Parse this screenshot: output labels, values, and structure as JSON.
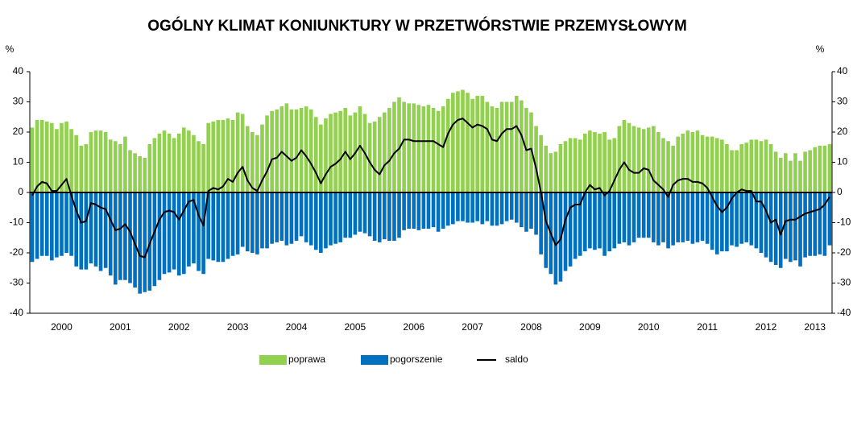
{
  "chart_data": {
    "type": "bar",
    "title": "OGÓLNY KLIMAT KONIUNKTURY W PRZETWÓRSTWIE PRZEMYSŁOWYM",
    "y_label": "%",
    "y2_label": "%",
    "categories": [
      null,
      null,
      null,
      null,
      null,
      null,
      "2000",
      null,
      null,
      null,
      null,
      null,
      null,
      null,
      null,
      null,
      null,
      null,
      "2001",
      null,
      null,
      null,
      null,
      null,
      null,
      null,
      null,
      null,
      null,
      null,
      "2002",
      null,
      null,
      null,
      null,
      null,
      null,
      null,
      null,
      null,
      null,
      null,
      "2003",
      null,
      null,
      null,
      null,
      null,
      null,
      null,
      null,
      null,
      null,
      null,
      "2004",
      null,
      null,
      null,
      null,
      null,
      null,
      null,
      null,
      null,
      null,
      null,
      "2005",
      null,
      null,
      null,
      null,
      null,
      null,
      null,
      null,
      null,
      null,
      null,
      "2006",
      null,
      null,
      null,
      null,
      null,
      null,
      null,
      null,
      null,
      null,
      null,
      "2007",
      null,
      null,
      null,
      null,
      null,
      null,
      null,
      null,
      null,
      null,
      null,
      "2008",
      null,
      null,
      null,
      null,
      null,
      null,
      null,
      null,
      null,
      null,
      null,
      "2009",
      null,
      null,
      null,
      null,
      null,
      null,
      null,
      null,
      null,
      null,
      null,
      "2010",
      null,
      null,
      null,
      null,
      null,
      null,
      null,
      null,
      null,
      null,
      null,
      "2011",
      null,
      null,
      null,
      null,
      null,
      null,
      null,
      null,
      null,
      null,
      null,
      "2012",
      null,
      null,
      null,
      null,
      null,
      null,
      null,
      null,
      null,
      "2013",
      null,
      null,
      null
    ],
    "series": [
      {
        "name": "poprawa",
        "type": "bar",
        "color": "#92d050",
        "values": [
          21.5,
          24,
          24,
          23.5,
          23,
          21,
          23,
          23.5,
          21,
          19,
          15.5,
          16,
          20,
          20.5,
          20.5,
          20,
          17.5,
          17,
          16,
          18.5,
          14,
          13,
          12,
          11.5,
          16,
          18,
          19.5,
          20.5,
          19.5,
          18,
          19.5,
          21.5,
          20.5,
          19,
          17,
          16,
          23,
          23.5,
          24,
          24,
          24.5,
          24,
          26.5,
          26,
          22,
          20,
          19,
          22.5,
          25.5,
          27,
          27.5,
          28.5,
          29.5,
          27.5,
          27.5,
          28,
          28.5,
          27.5,
          25,
          22.5,
          24.5,
          26,
          26.5,
          27,
          28,
          25.5,
          26.5,
          28.5,
          26,
          23,
          23.5,
          25,
          26.5,
          28,
          30,
          31.5,
          30,
          29.5,
          29.5,
          29,
          28.5,
          29,
          28,
          27,
          28.5,
          31,
          33,
          33.5,
          34,
          33,
          31,
          32,
          32,
          30,
          28.5,
          28,
          30,
          30,
          30,
          32,
          30.5,
          28,
          26.5,
          22,
          19,
          15.5,
          13,
          13.5,
          16,
          17,
          18,
          18,
          17.5,
          19.5,
          20.5,
          20,
          19.5,
          20,
          17.5,
          18,
          22,
          24,
          23,
          22,
          21.5,
          21,
          21.5,
          22,
          20,
          18,
          17,
          15.5,
          18.5,
          19.5,
          20.5,
          20,
          20.5,
          19,
          18.5,
          18.5,
          18,
          17.5,
          16,
          14,
          14,
          16,
          16.5,
          17.5,
          17.5,
          17,
          17.5,
          16,
          13.5,
          11.5,
          13,
          10.5,
          13,
          10.5,
          13.5,
          14,
          15,
          15.5,
          15.5,
          16
        ]
      },
      {
        "name": "pogorszenie",
        "type": "bar",
        "color": "#0070c0",
        "values": [
          -23,
          -22,
          -21,
          -21,
          -22.5,
          -21.5,
          -21,
          -20,
          -21,
          -24.5,
          -25.5,
          -25.5,
          -23.5,
          -24.5,
          -26,
          -25,
          -27.5,
          -30.5,
          -29,
          -29,
          -30,
          -31.5,
          -33.5,
          -33,
          -32.5,
          -31,
          -29,
          -27,
          -26.5,
          -25.5,
          -27.5,
          -27,
          -24.5,
          -23.5,
          -26,
          -27,
          -22,
          -22.5,
          -23,
          -23,
          -22,
          -21,
          -20.5,
          -18,
          -19.5,
          -20,
          -20.5,
          -18.5,
          -18.5,
          -17,
          -16.5,
          -16,
          -17.5,
          -17,
          -16,
          -14.5,
          -16.5,
          -17.5,
          -19,
          -20,
          -18.5,
          -17.5,
          -17,
          -16.5,
          -15,
          -15,
          -14,
          -13,
          -13.5,
          -14.5,
          -16,
          -16.5,
          -15.5,
          -16,
          -16,
          -15,
          -12.5,
          -12,
          -12,
          -12.5,
          -12,
          -12,
          -11.5,
          -13,
          -12,
          -11,
          -10.5,
          -9.5,
          -9.5,
          -10,
          -10,
          -9.5,
          -10.5,
          -9.5,
          -11,
          -11,
          -10.5,
          -9.5,
          -9,
          -10,
          -11.5,
          -13,
          -12,
          -14,
          -20.5,
          -25,
          -27,
          -30.5,
          -29.5,
          -26,
          -24.5,
          -22,
          -21,
          -19.5,
          -18.5,
          -19,
          -18.5,
          -21,
          -19.5,
          -18.5,
          -17,
          -16.5,
          -17.5,
          -16.5,
          -15,
          -15,
          -15,
          -16.5,
          -17.5,
          -16.5,
          -18.5,
          -17.5,
          -16.5,
          -16.5,
          -16,
          -17,
          -16.5,
          -16,
          -17,
          -19,
          -20.5,
          -19.5,
          -19.5,
          -17.5,
          -18,
          -17,
          -16.5,
          -17.5,
          -18.5,
          -20,
          -21.5,
          -23,
          -24,
          -25,
          -22,
          -23,
          -22.5,
          -24.5,
          -21.5,
          -21,
          -21,
          -20.5,
          -21,
          -17.5
        ]
      },
      {
        "name": "saldo",
        "type": "line",
        "color": "#000000",
        "values": [
          -1,
          2,
          3.5,
          3,
          0.5,
          0.5,
          2.5,
          4.5,
          -1,
          -6,
          -10,
          -9.5,
          -3.5,
          -4,
          -5,
          -5.5,
          -9,
          -12.5,
          -12,
          -10.5,
          -13,
          -17,
          -21,
          -21.5,
          -17,
          -13,
          -9,
          -6.5,
          -6,
          -6.5,
          -9,
          -6,
          -3,
          -2.5,
          -7.5,
          -11,
          0.5,
          1.5,
          1,
          2,
          4.5,
          3.5,
          6.5,
          8.5,
          4,
          1.5,
          0.5,
          4,
          7,
          11,
          11.5,
          13.5,
          12,
          10.5,
          11.5,
          14,
          12,
          9.5,
          6.5,
          3,
          6,
          8.5,
          9.5,
          11,
          13.5,
          11,
          13,
          15.5,
          13,
          10,
          7.5,
          6,
          9,
          10.5,
          13,
          14.5,
          17.5,
          17.5,
          17,
          17,
          17,
          17,
          17,
          16,
          15,
          19.5,
          22.5,
          24,
          24.5,
          23,
          21.5,
          22.5,
          22,
          21,
          17.5,
          17,
          19.5,
          21,
          21,
          22,
          19,
          14,
          14.5,
          8,
          0,
          -9.5,
          -13.5,
          -17.5,
          -15.5,
          -9,
          -5,
          -4,
          -4,
          0,
          2.5,
          1,
          1.5,
          -1,
          0.5,
          4,
          7.5,
          10,
          7.5,
          6.5,
          6.5,
          8,
          7.5,
          4,
          2.5,
          1,
          -1.5,
          2.5,
          4,
          4.5,
          4.5,
          3.5,
          3.5,
          3,
          1.5,
          -1.5,
          -4.5,
          -6.5,
          -5,
          -2,
          0,
          1,
          0.5,
          0.5,
          -3,
          -3,
          -6,
          -10,
          -9,
          -14,
          -9.5,
          -9,
          -9,
          -8,
          -7,
          -6.5,
          -6,
          -5.5,
          -4,
          -1.5
        ]
      }
    ],
    "ylim": [
      -40,
      40
    ],
    "yticks": [
      -40,
      -30,
      -20,
      -10,
      0,
      10,
      20,
      30,
      40
    ],
    "y2lim": [
      -40,
      40
    ],
    "y2ticks": [
      -40,
      -30,
      -20,
      -10,
      0,
      10,
      20,
      30,
      40
    ],
    "legend": "bottom"
  }
}
